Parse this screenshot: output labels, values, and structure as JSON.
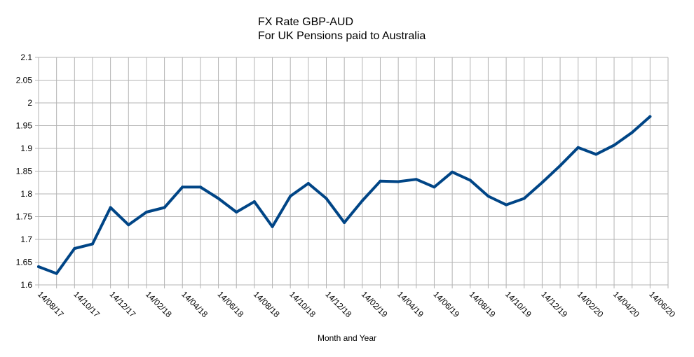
{
  "chart_data": {
    "type": "line",
    "title": "FX Rate GBP-AUD",
    "subtitle": "For UK Pensions paid to Australia",
    "xlabel": "Month and Year",
    "ylabel": "",
    "ylim": [
      1.6,
      2.1
    ],
    "yticks": [
      1.6,
      1.65,
      1.7,
      1.75,
      1.8,
      1.85,
      1.9,
      1.95,
      2,
      2.05,
      2.1
    ],
    "ytick_labels": [
      "1.6",
      "1.65",
      "1.7",
      "1.75",
      "1.8",
      "1.85",
      "1.9",
      "1.95",
      "2",
      "2.05",
      "2.1"
    ],
    "x_date_range": [
      "2017-08-14",
      "2020-07-14"
    ],
    "xtick_labels": [
      "14/08/17",
      "14/10/17",
      "14/12/17",
      "14/02/18",
      "14/04/18",
      "14/06/18",
      "14/08/18",
      "14/10/18",
      "14/12/18",
      "14/02/19",
      "14/04/19",
      "14/06/19",
      "14/08/19",
      "14/10/19",
      "14/12/19",
      "14/02/20",
      "14/04/20",
      "14/06/20"
    ],
    "grid": true,
    "legend": "none",
    "line_color": "#004586",
    "series": [
      {
        "values": [
          [
            "2017-08-14",
            1.64
          ],
          [
            "2017-09-14",
            1.625
          ],
          [
            "2017-10-14",
            1.68
          ],
          [
            "2017-11-14",
            1.69
          ],
          [
            "2017-12-14",
            1.77
          ],
          [
            "2018-01-14",
            1.732
          ],
          [
            "2018-02-14",
            1.76
          ],
          [
            "2018-03-14",
            1.77
          ],
          [
            "2018-04-14",
            1.815
          ],
          [
            "2018-05-14",
            1.815
          ],
          [
            "2018-06-14",
            1.79
          ],
          [
            "2018-07-14",
            1.76
          ],
          [
            "2018-08-14",
            1.783
          ],
          [
            "2018-09-14",
            1.728
          ],
          [
            "2018-10-14",
            1.795
          ],
          [
            "2018-11-14",
            1.823
          ],
          [
            "2018-12-14",
            1.79
          ],
          [
            "2019-01-14",
            1.737
          ],
          [
            "2019-02-14",
            1.785
          ],
          [
            "2019-03-14",
            1.828
          ],
          [
            "2019-04-14",
            1.827
          ],
          [
            "2019-05-14",
            1.832
          ],
          [
            "2019-06-14",
            1.815
          ],
          [
            "2019-07-14",
            1.848
          ],
          [
            "2019-08-14",
            1.83
          ],
          [
            "2019-09-14",
            1.795
          ],
          [
            "2019-10-14",
            1.776
          ],
          [
            "2019-11-14",
            1.79
          ],
          [
            "2019-12-14",
            1.825
          ],
          [
            "2020-01-14",
            1.862
          ],
          [
            "2020-02-14",
            1.902
          ],
          [
            "2020-03-14",
            1.887
          ],
          [
            "2020-04-14",
            1.907
          ],
          [
            "2020-05-14",
            1.935
          ],
          [
            "2020-06-14",
            1.97
          ]
        ]
      }
    ]
  }
}
